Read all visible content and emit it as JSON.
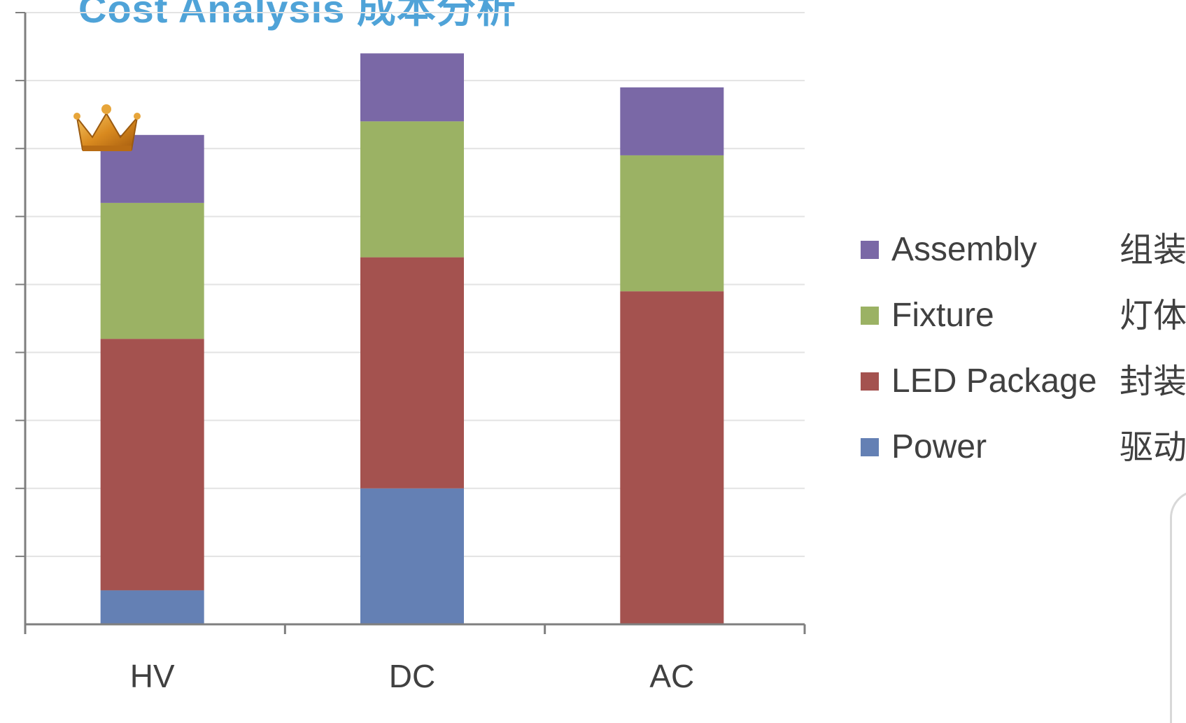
{
  "title": "Cost Analysis 成本分析",
  "colors": {
    "title": "#4fa3d8",
    "Assembly": "#7a68a6",
    "Fixture": "#9bb264",
    "LED Package": "#a4524f",
    "Power": "#6480b4",
    "grid": "#e3e3e3",
    "axis": "#7f7f7f"
  },
  "chart_data": {
    "type": "bar",
    "stacked": true,
    "categories": [
      "HV",
      "DC",
      "AC"
    ],
    "series": [
      {
        "name": "Power",
        "values": [
          0.5,
          2.0,
          0.0
        ]
      },
      {
        "name": "LED Package",
        "values": [
          3.7,
          3.4,
          4.9
        ]
      },
      {
        "name": "Fixture",
        "values": [
          2.0,
          2.0,
          2.0
        ]
      },
      {
        "name": "Assembly",
        "values": [
          1.0,
          1.0,
          1.0
        ]
      }
    ],
    "ylim": [
      0,
      9
    ],
    "grid": true,
    "legend_position": "right",
    "legend": [
      {
        "name": "Assembly",
        "cn": "组装"
      },
      {
        "name": "Fixture",
        "cn": "灯体"
      },
      {
        "name": "LED Package",
        "cn": "封装"
      },
      {
        "name": "Power",
        "cn": "驱动"
      }
    ],
    "annotations": [
      "crown-icon above HV"
    ]
  }
}
